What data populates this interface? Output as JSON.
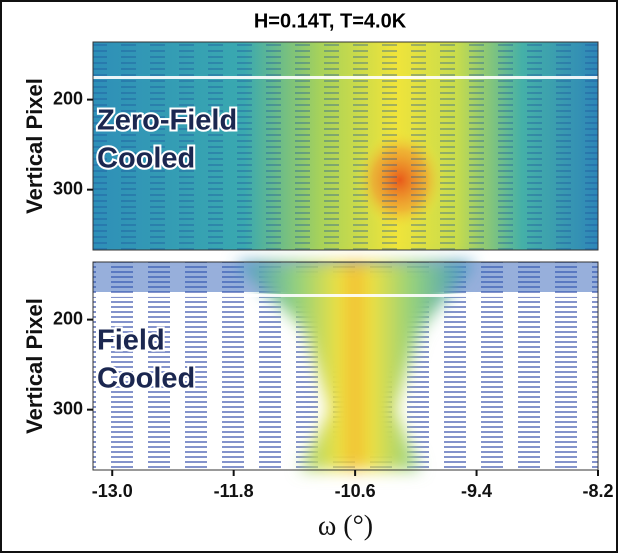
{
  "chart_data": [
    {
      "type": "heatmap",
      "title": "H=0.14T, T=4.0K",
      "ylabel": "Vertical Pixel",
      "annotation": [
        "Zero-Field",
        "Cooled"
      ],
      "ylim": [
        136,
        367
      ],
      "y_inverted": true,
      "yticks": [
        200,
        300
      ],
      "xlim": [
        -13.19,
        -8.2
      ]
    },
    {
      "type": "heatmap",
      "ylabel": "Vertical Pixel",
      "annotation": [
        "Field",
        "Cooled"
      ],
      "ylim": [
        136,
        367
      ],
      "y_inverted": true,
      "yticks": [
        200,
        300
      ],
      "xlim": [
        -13.19,
        -8.2
      ],
      "xticks": [
        {
          "value": -13,
          "label": "-13.0"
        },
        -11.8,
        -10.6,
        -9.4,
        -8.2
      ],
      "xlabel": "ω (°)"
    }
  ]
}
